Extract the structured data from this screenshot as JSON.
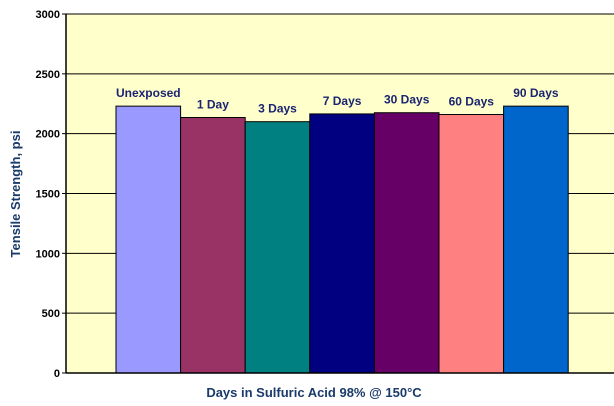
{
  "chart_data": {
    "type": "bar",
    "title": "",
    "xlabel": "Days in Sulfuric Acid 98% @ 150°C",
    "ylabel": "Tensile Strength, psi",
    "ylim": [
      0,
      3000
    ],
    "yticks": [
      0,
      500,
      1000,
      1500,
      2000,
      2500,
      3000
    ],
    "grid": true,
    "legend": "none",
    "plot_background": "#ffffcc",
    "categories": [
      "Unexposed",
      "1 Day",
      "3 Days",
      "7 Days",
      "30 Days",
      "60 Days",
      "90 Days"
    ],
    "values": [
      2230,
      2135,
      2100,
      2165,
      2175,
      2160,
      2230
    ],
    "colors": [
      "#9999ff",
      "#993366",
      "#008080",
      "#000080",
      "#660066",
      "#ff8080",
      "#0066cc"
    ],
    "data_labels": [
      "Unexposed",
      "1 Day",
      "3 Days",
      "7 Days",
      "30 Days",
      "60 Days",
      "90 Days"
    ]
  }
}
